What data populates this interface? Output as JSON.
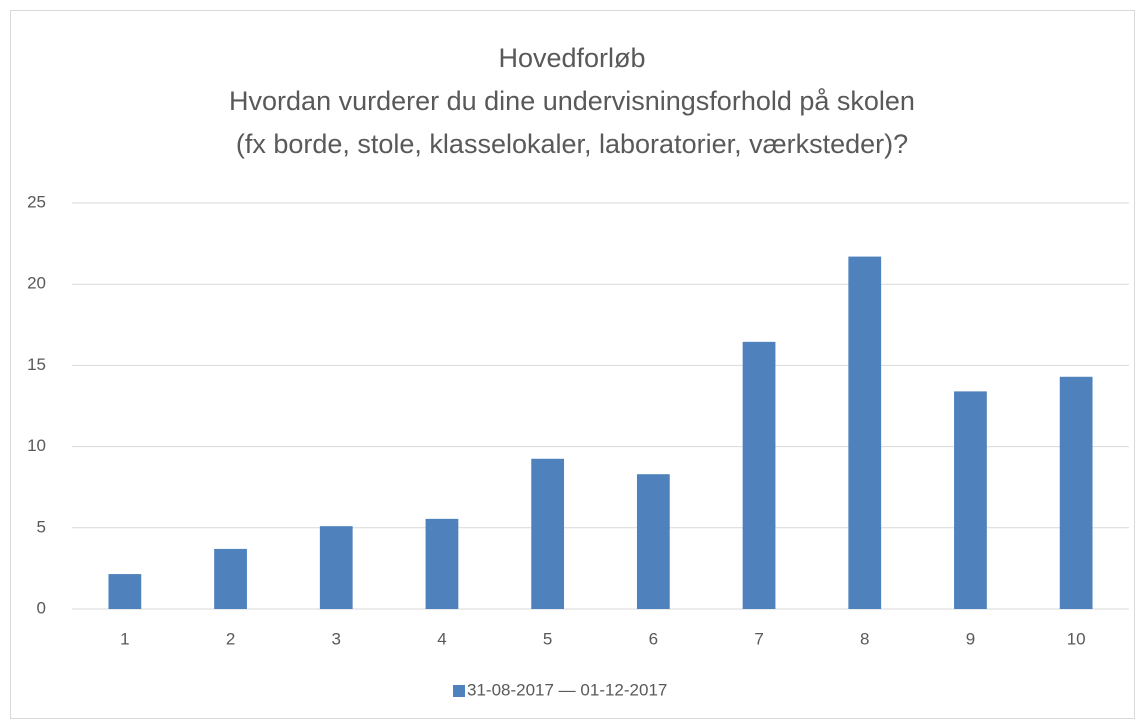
{
  "chart_data": {
    "type": "bar",
    "title": [
      "Hovedforløb",
      "Hvordan vurderer du dine undervisningsforhold på skolen",
      "(fx borde, stole, klasselokaler, laboratorier, værksteder)?"
    ],
    "categories": [
      "1",
      "2",
      "3",
      "4",
      "5",
      "6",
      "7",
      "8",
      "9",
      "10"
    ],
    "series": [
      {
        "name": "31-08-2017 — 01-12-2017",
        "color": "#4f81bd",
        "values": [
          2.15,
          3.7,
          5.1,
          5.55,
          9.25,
          8.3,
          16.45,
          21.7,
          13.4,
          14.3
        ]
      }
    ],
    "ylim": [
      0,
      25
    ],
    "yticks": [
      0,
      5,
      10,
      15,
      20,
      25
    ],
    "grid": true,
    "legend": "bottom"
  }
}
